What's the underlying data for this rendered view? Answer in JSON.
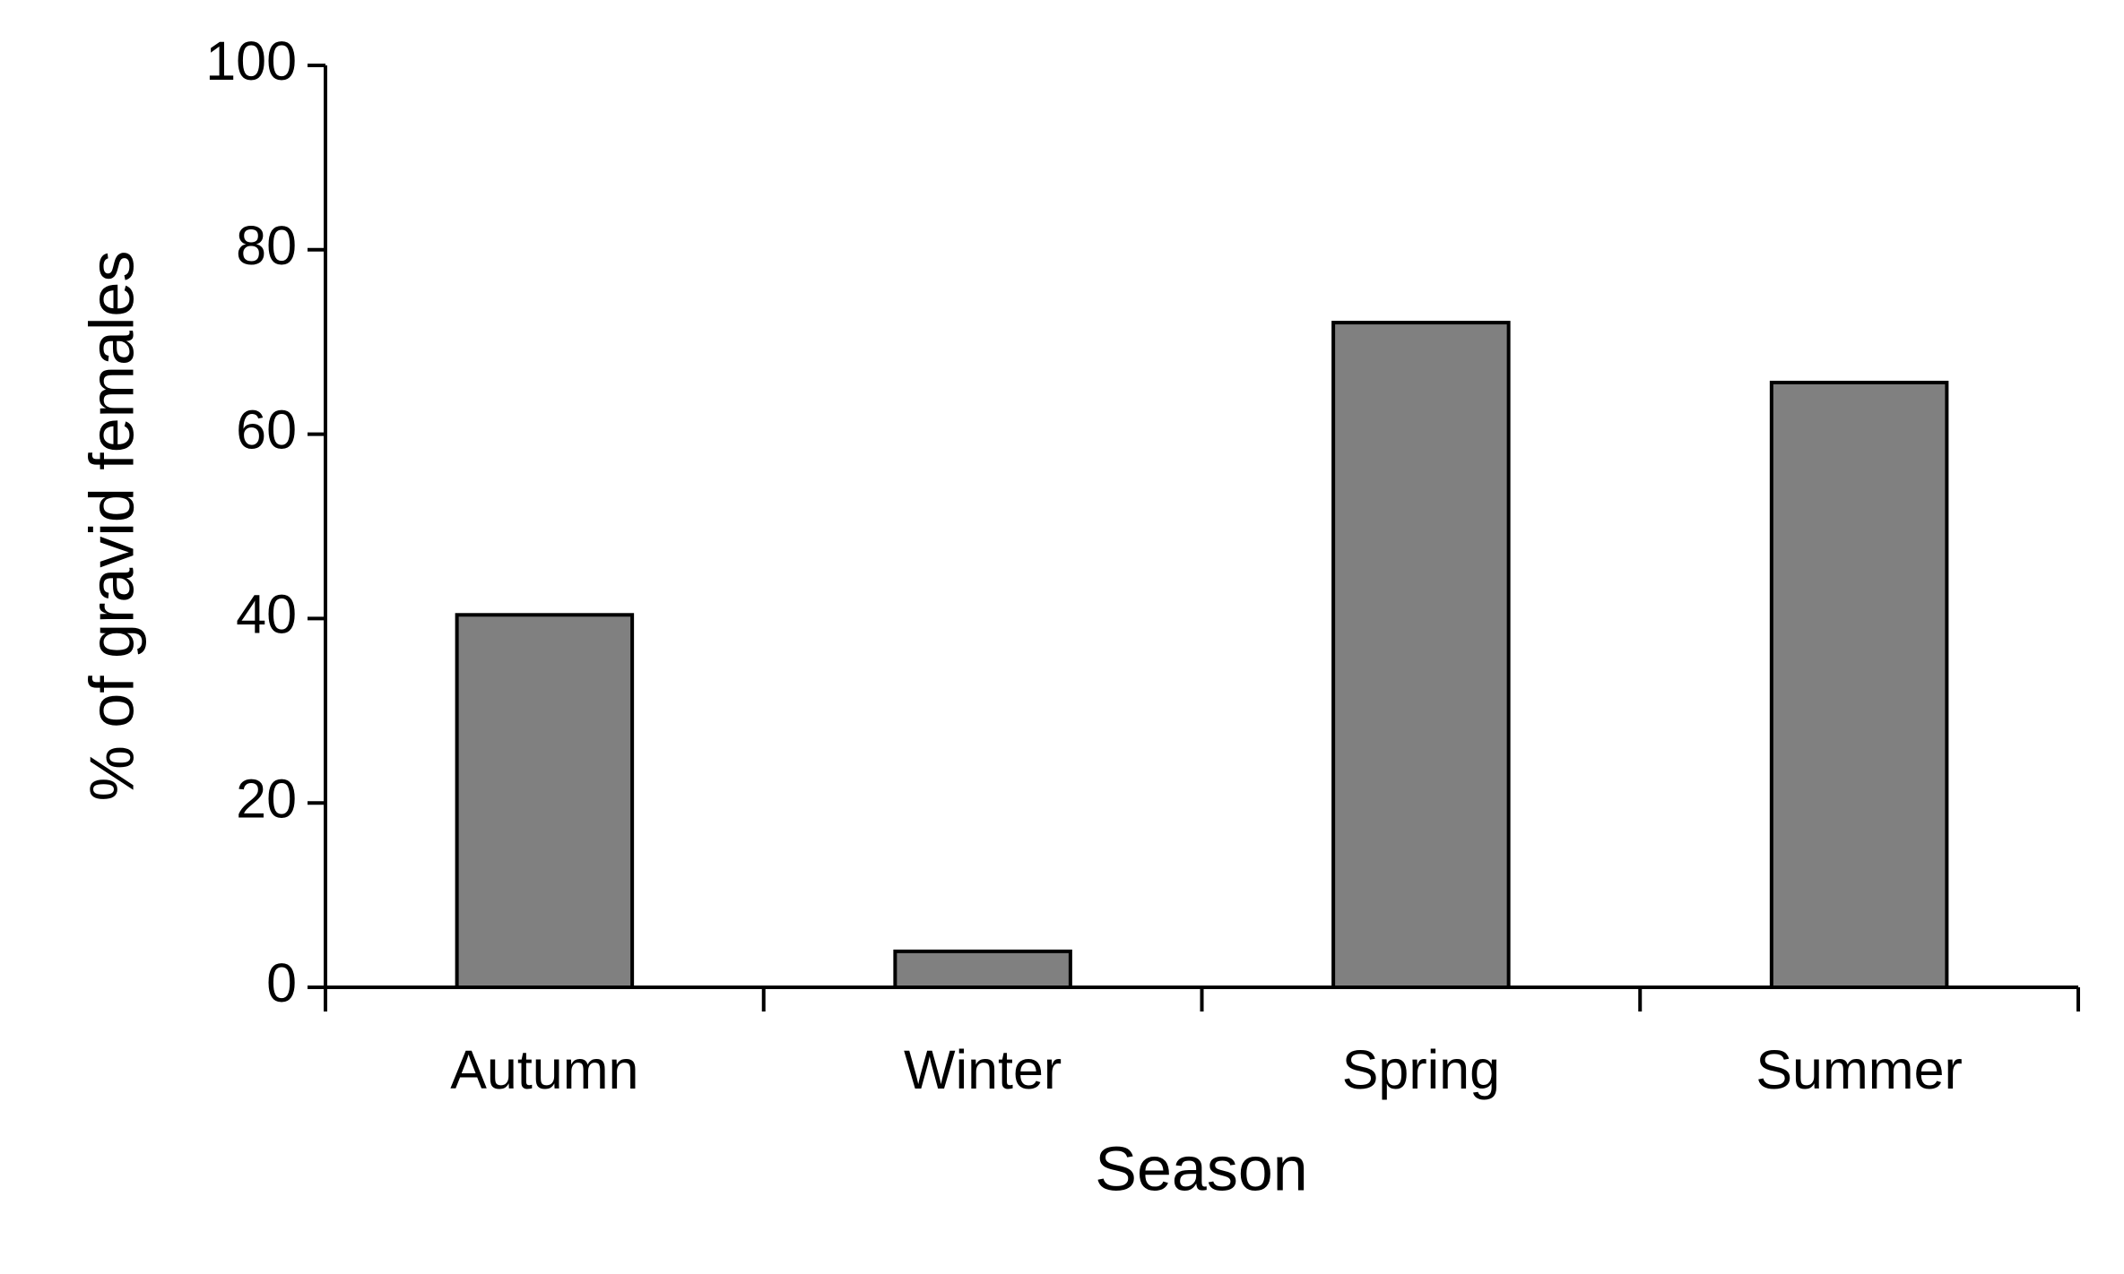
{
  "chart_data": {
    "type": "bar",
    "categories": [
      "Autumn",
      "Winter",
      "Spring",
      "Summer"
    ],
    "values": [
      40.4,
      3.9,
      72.1,
      65.6
    ],
    "color": "#808080",
    "xlabel": "Season",
    "ylabel": "% of gravid females",
    "ylim": [
      0,
      100
    ],
    "yticks": [
      0,
      20,
      40,
      60,
      80,
      100
    ],
    "grid": false
  }
}
